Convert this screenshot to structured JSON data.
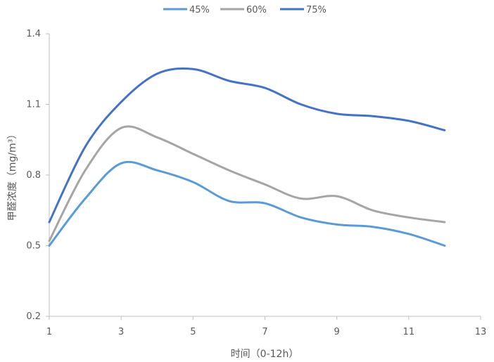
{
  "chart_data": {
    "type": "line",
    "xlabel": "时间（0-12h）",
    "ylabel": "甲醛浓度（mg/m³）",
    "xlim": [
      1,
      13
    ],
    "ylim": [
      0.2,
      1.4
    ],
    "xticks": [
      1,
      3,
      5,
      7,
      9,
      11,
      13
    ],
    "yticks": [
      0.2,
      0.5,
      0.8,
      1.1,
      1.4
    ],
    "xtick_labels": [
      "1",
      "3",
      "5",
      "7",
      "9",
      "11",
      "13"
    ],
    "ytick_labels": [
      "0.2",
      "0.5",
      "0.8",
      "1.1",
      "1.4"
    ],
    "legend_position": "top-center",
    "grid": false,
    "x": [
      1,
      2,
      3,
      4,
      5,
      6,
      7,
      8,
      9,
      10,
      11,
      12
    ],
    "series": [
      {
        "name": "45%",
        "color": "#5B9BD5",
        "values": [
          0.5,
          0.7,
          0.85,
          0.82,
          0.77,
          0.69,
          0.68,
          0.62,
          0.59,
          0.58,
          0.55,
          0.5
        ]
      },
      {
        "name": "60%",
        "color": "#A5A5A5",
        "values": [
          0.52,
          0.82,
          1.0,
          0.96,
          0.89,
          0.82,
          0.76,
          0.7,
          0.71,
          0.65,
          0.62,
          0.6
        ]
      },
      {
        "name": "75%",
        "color": "#4472C4",
        "values": [
          0.6,
          0.92,
          1.11,
          1.23,
          1.25,
          1.2,
          1.17,
          1.1,
          1.06,
          1.05,
          1.03,
          0.99
        ]
      }
    ]
  }
}
